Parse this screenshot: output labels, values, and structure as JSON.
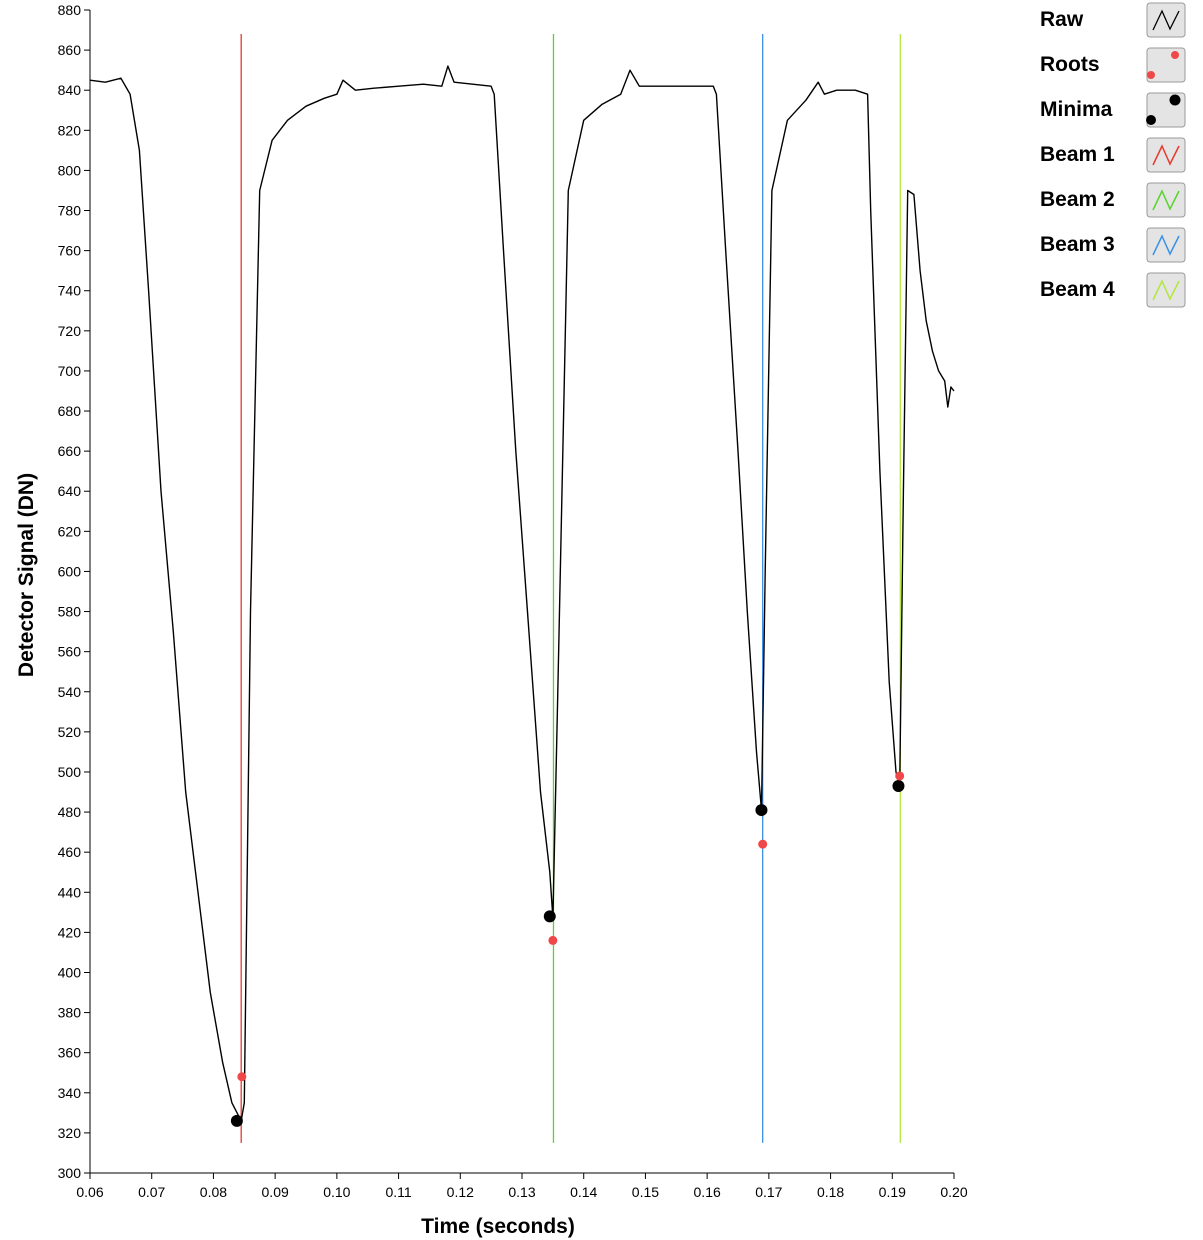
{
  "chart_data": {
    "type": "line",
    "title": "",
    "xlabel": "Time (seconds)",
    "ylabel": "Detector Signal (DN)",
    "xlim": [
      0.06,
      0.2
    ],
    "ylim": [
      300,
      880
    ],
    "xticks": [
      "0.06",
      "0.07",
      "0.08",
      "0.09",
      "0.10",
      "0.11",
      "0.12",
      "0.13",
      "0.14",
      "0.15",
      "0.16",
      "0.17",
      "0.18",
      "0.19",
      "0.20"
    ],
    "yticks": [
      "300",
      "320",
      "340",
      "360",
      "380",
      "400",
      "420",
      "440",
      "460",
      "480",
      "500",
      "520",
      "540",
      "560",
      "580",
      "600",
      "620",
      "640",
      "660",
      "680",
      "700",
      "720",
      "740",
      "760",
      "780",
      "800",
      "820",
      "840",
      "860",
      "880"
    ],
    "grid": false,
    "legend_position": "top-right",
    "legend": [
      {
        "label": "Raw",
        "color": "#000000",
        "kind": "line"
      },
      {
        "label": "Roots",
        "color": "#f04848",
        "kind": "points"
      },
      {
        "label": "Minima",
        "color": "#000000",
        "kind": "points"
      },
      {
        "label": "Beam 1",
        "color": "#e8382e",
        "kind": "line"
      },
      {
        "label": "Beam 2",
        "color": "#5ad22c",
        "kind": "line"
      },
      {
        "label": "Beam 3",
        "color": "#3a90e8",
        "kind": "line"
      },
      {
        "label": "Beam 4",
        "color": "#b4e63c",
        "kind": "line"
      }
    ],
    "series": [
      {
        "name": "Raw",
        "color": "#000000",
        "x": [
          0.06,
          0.0625,
          0.065,
          0.0665,
          0.068,
          0.0695,
          0.0715,
          0.0735,
          0.0755,
          0.0775,
          0.0795,
          0.0815,
          0.083,
          0.0845,
          0.085,
          0.086,
          0.0875,
          0.0895,
          0.092,
          0.095,
          0.098,
          0.1,
          0.101,
          0.103,
          0.106,
          0.11,
          0.114,
          0.117,
          0.118,
          0.119,
          0.122,
          0.125,
          0.1255,
          0.127,
          0.129,
          0.131,
          0.133,
          0.1345,
          0.135,
          0.1358,
          0.1375,
          0.14,
          0.143,
          0.146,
          0.1475,
          0.149,
          0.152,
          0.156,
          0.161,
          0.1615,
          0.163,
          0.165,
          0.1665,
          0.168,
          0.1688,
          0.1694,
          0.1705,
          0.173,
          0.176,
          0.178,
          0.179,
          0.181,
          0.184,
          0.186,
          0.1865,
          0.188,
          0.1895,
          0.1906,
          0.1912,
          0.1918,
          0.1925,
          0.1935,
          0.1945,
          0.1955,
          0.1965,
          0.1975,
          0.1985,
          0.199,
          0.1995,
          0.2
        ],
        "y": [
          845,
          844,
          846,
          838,
          810,
          740,
          640,
          570,
          490,
          440,
          390,
          355,
          335,
          326,
          335,
          580,
          790,
          815,
          825,
          832,
          836,
          838,
          845,
          840,
          841,
          842,
          843,
          842,
          852,
          844,
          843,
          842,
          838,
          760,
          660,
          575,
          490,
          450,
          427,
          540,
          790,
          825,
          833,
          838,
          850,
          842,
          842,
          842,
          842,
          838,
          760,
          660,
          580,
          510,
          481,
          600,
          790,
          825,
          835,
          844,
          838,
          840,
          840,
          838,
          780,
          650,
          545,
          500,
          493,
          640,
          790,
          788,
          750,
          725,
          710,
          700,
          695,
          682,
          692,
          690
        ]
      },
      {
        "name": "Roots",
        "color": "#f04848",
        "x": [
          0.0846,
          0.135,
          0.169,
          0.1912
        ],
        "y": [
          348,
          416,
          464,
          498
        ]
      },
      {
        "name": "Minima",
        "color": "#000000",
        "x": [
          0.0838,
          0.1345,
          0.1688,
          0.191
        ],
        "y": [
          326,
          428,
          481,
          493
        ]
      },
      {
        "name": "Beam 1",
        "color": "#e8382e",
        "x": [
          0.0845,
          0.0845
        ],
        "y": [
          315,
          868
        ]
      },
      {
        "name": "Beam 2",
        "color": "#5ad22c",
        "x": [
          0.1351,
          0.1351
        ],
        "y": [
          315,
          868
        ]
      },
      {
        "name": "Beam 3",
        "color": "#3a90e8",
        "x": [
          0.169,
          0.169
        ],
        "y": [
          315,
          868
        ]
      },
      {
        "name": "Beam 4",
        "color": "#b4e63c",
        "x": [
          0.1913,
          0.1913
        ],
        "y": [
          315,
          868
        ]
      }
    ]
  }
}
